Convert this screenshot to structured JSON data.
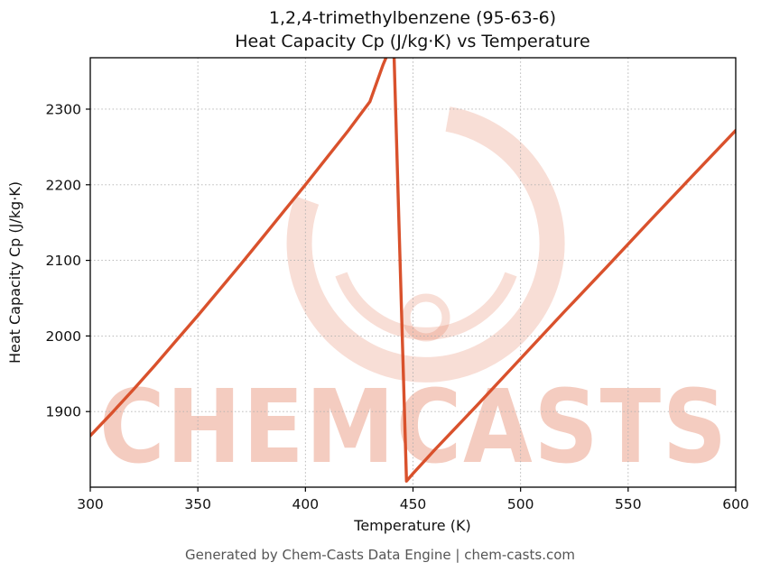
{
  "title": {
    "line1": "1,2,4-trimethylbenzene (95-63-6)",
    "line2": "Heat Capacity Cp (J/kg·K) vs Temperature"
  },
  "footer": "Generated by Chem-Casts Data Engine | chem-casts.com",
  "watermark": {
    "text": "CHEMCASTS"
  },
  "colors": {
    "line": "#d9512c",
    "watermark": "#dd5a33",
    "grid": "#b0b0b0",
    "axis": "#000000",
    "footer_text": "#555555"
  },
  "chart_data": {
    "type": "line",
    "title": "1,2,4-trimethylbenzene (95-63-6) — Heat Capacity Cp (J/kg·K) vs Temperature",
    "xlabel": "Temperature (K)",
    "ylabel": "Heat Capacity Cp (J/kg·K)",
    "xlim": [
      300,
      600
    ],
    "ylim": [
      1800,
      2368
    ],
    "x_ticks": [
      300,
      350,
      400,
      450,
      500,
      550,
      600
    ],
    "y_ticks": [
      1900,
      2000,
      2100,
      2200,
      2300
    ],
    "grid": true,
    "legend": "none",
    "series": [
      {
        "name": "Heat Capacity Cp",
        "points": [
          [
            300,
            1868
          ],
          [
            310,
            1898
          ],
          [
            320,
            1929
          ],
          [
            330,
            1961
          ],
          [
            340,
            1994
          ],
          [
            350,
            2027
          ],
          [
            360,
            2061
          ],
          [
            370,
            2095
          ],
          [
            380,
            2130
          ],
          [
            390,
            2165
          ],
          [
            400,
            2200
          ],
          [
            410,
            2236
          ],
          [
            420,
            2272
          ],
          [
            430,
            2310
          ],
          [
            436,
            2358
          ],
          [
            441,
            2392
          ],
          [
            447,
            1808
          ],
          [
            450,
            1818
          ],
          [
            460,
            1849
          ],
          [
            480,
            1909
          ],
          [
            500,
            1970
          ],
          [
            520,
            2031
          ],
          [
            540,
            2091
          ],
          [
            560,
            2152
          ],
          [
            580,
            2212
          ],
          [
            600,
            2272
          ]
        ]
      }
    ]
  }
}
